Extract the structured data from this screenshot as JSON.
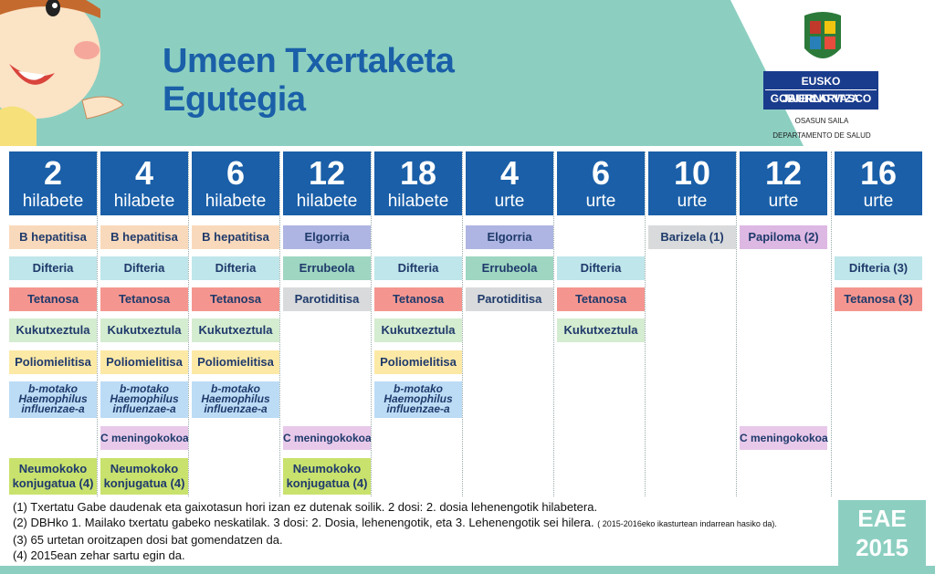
{
  "header": {
    "title_line1": "Umeen Txertaketa",
    "title_line2": "Egutegia",
    "logo_line1": "EUSKO JAURLARITZA",
    "logo_line2": "GOBIERNO VASCO",
    "dept_line1": "OSASUN SAILA",
    "dept_line2": "DEPARTAMENTO DE SALUD"
  },
  "ages": [
    {
      "num": "2",
      "unit": "hilabete"
    },
    {
      "num": "4",
      "unit": "hilabete"
    },
    {
      "num": "6",
      "unit": "hilabete"
    },
    {
      "num": "12",
      "unit": "hilabete"
    },
    {
      "num": "18",
      "unit": "hilabete"
    },
    {
      "num": "4",
      "unit": "urte"
    },
    {
      "num": "6",
      "unit": "urte"
    },
    {
      "num": "10",
      "unit": "urte"
    },
    {
      "num": "12",
      "unit": "urte"
    },
    {
      "num": "16",
      "unit": "urte"
    }
  ],
  "vaccines": {
    "hep": "B hepatitisa",
    "dif": "Difteria",
    "tet": "Tetanosa",
    "kuk": "Kukutxeztula",
    "pol": "Poliomielitisa",
    "hib_1": "b-motako",
    "hib_2": "Haemophilus",
    "hib_3": "influenzae-a",
    "men": "C meningokokoa",
    "neu_1": "Neumokoko",
    "neu_2": "konjugatua (4)",
    "elg": "Elgorria",
    "err": "Errubeola",
    "par": "Parotiditisa",
    "bar": "Barizela (1)",
    "pap": "Papiloma (2)",
    "dif3": "Difteria (3)",
    "tet3": "Tetanosa (3)"
  },
  "footer": {
    "note1": "(1) Txertatu Gabe daudenak eta gaixotasun hori izan ez dutenak soilik. 2 dosi: 2. dosia lehenengotik hilabetera.",
    "note2": "(2) DBHko 1. Mailako txertatu gabeko neskatilak. 3 dosi: 2. Dosia, lehenengotik, eta 3. Lehenengotik sei hilera.",
    "note2_small": "( 2015-2016eko ikasturtean indarrean hasiko da).",
    "note3": "(3) 65 urtetan oroitzapen dosi bat gomendatzen da.",
    "note4": "(4) 2015ean zehar sartu egin da.",
    "badge_line1": "EAE",
    "badge_line2": "2015"
  }
}
